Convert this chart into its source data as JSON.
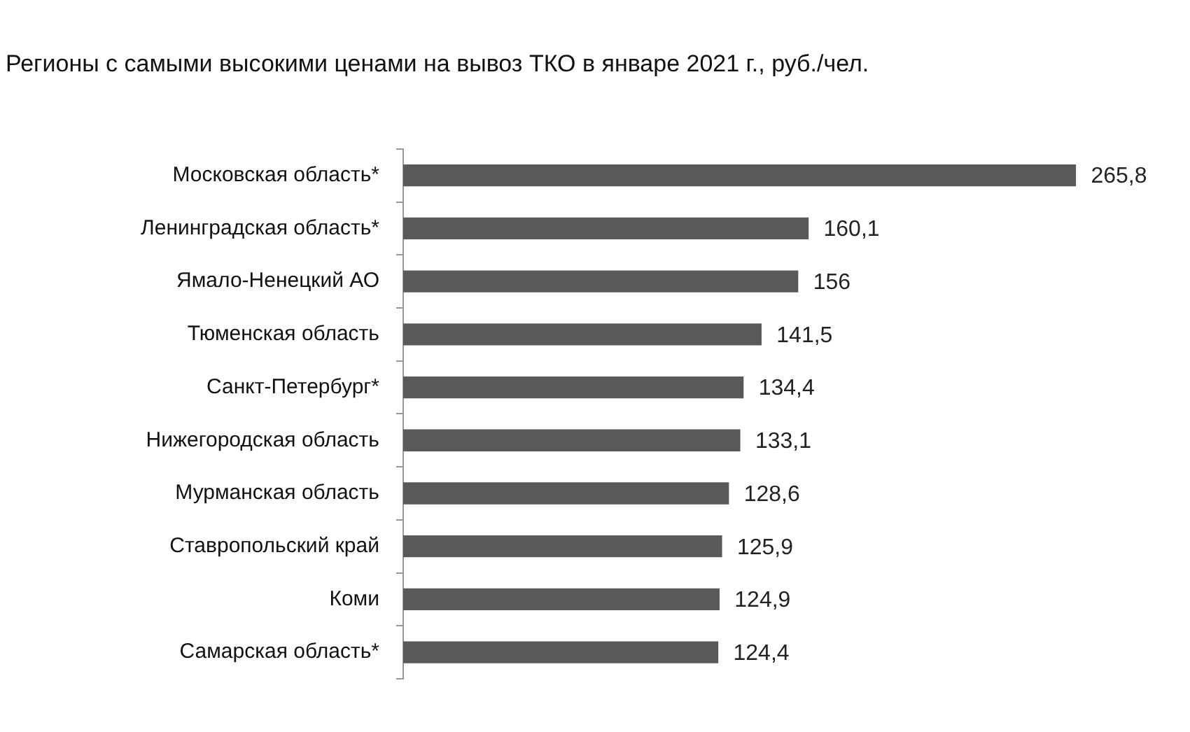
{
  "chart_data": {
    "type": "bar",
    "orientation": "horizontal",
    "title": "Регионы с самыми высокими ценами на вывоз ТКО в январе 2021 г., руб./чел.",
    "categories": [
      "Московская область*",
      "Ленинградская область*",
      "Ямало-Ненецкий АО",
      "Тюменская область",
      "Санкт-Петербург*",
      "Нижегородская область",
      "Мурманская область",
      "Ставропольский край",
      "Коми",
      "Самарская область*"
    ],
    "values": [
      265.8,
      160.1,
      156,
      141.5,
      134.4,
      133.1,
      128.6,
      125.9,
      124.9,
      124.4
    ],
    "value_labels": [
      "265,8",
      "160,1",
      "156",
      "141,5",
      "134,4",
      "133,1",
      "128,6",
      "125,9",
      "124,9",
      "124,4"
    ],
    "color": "#595959",
    "legend": false,
    "tick_labels": "y"
  }
}
